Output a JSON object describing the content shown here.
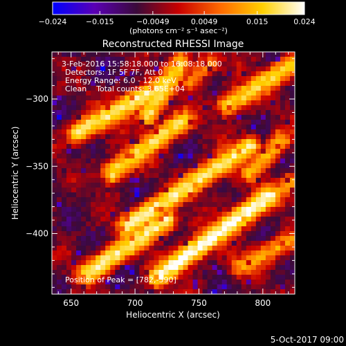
{
  "chart_data": {
    "type": "heatmap",
    "title": "Reconstructed RHESSI Image",
    "xlabel": "Heliocentric X (arcsec)",
    "ylabel": "Heliocentric Y (arcsec)",
    "xlim": [
      635,
      825
    ],
    "ylim": [
      -445,
      -265
    ],
    "x_ticks": [
      650,
      700,
      750,
      800
    ],
    "x_tick_labels": [
      "650",
      "700",
      "750",
      "800"
    ],
    "y_ticks": [
      -300,
      -350,
      -400
    ],
    "y_tick_labels": [
      "−300",
      "−350",
      "−400"
    ],
    "colorbar": {
      "min": -0.024,
      "max": 0.024,
      "ticks": [
        -0.024,
        -0.015,
        -0.0049,
        0.0049,
        0.015,
        0.024
      ],
      "tick_labels": [
        "−0.024",
        "−0.015",
        "−0.0049",
        "0.0049",
        "0.015",
        "0.024"
      ],
      "units": "(photons cm⁻² s⁻¹ asec⁻²)",
      "colormap": [
        "#0000ff",
        "#5a00b4",
        "#3a0a3a",
        "#c80000",
        "#ff6a00",
        "#ffd000",
        "#ffffff"
      ]
    },
    "annotations": [
      "3-Feb-2016 15:58:18.000 to 16:08:18.000",
      "Detectors: 1F 5F 7F, Att 0",
      "Energy Range: 6.0 - 12.0 keV",
      "Clean    Total counts: 3.65E+04"
    ],
    "peak_label": "Position of Peak = [782,-390]",
    "peak": [
      782,
      -390
    ],
    "bands": [
      {
        "x0": 655,
        "y0": -325,
        "x1": 725,
        "y1": -288,
        "amp": 0.02
      },
      {
        "x0": 710,
        "y0": -312,
        "x1": 735,
        "y1": -273,
        "amp": 0.018
      },
      {
        "x0": 682,
        "y0": -355,
        "x1": 738,
        "y1": -315,
        "amp": 0.018
      },
      {
        "x0": 693,
        "y0": -395,
        "x1": 790,
        "y1": -335,
        "amp": 0.02
      },
      {
        "x0": 662,
        "y0": -430,
        "x1": 725,
        "y1": -390,
        "amp": 0.02
      },
      {
        "x0": 718,
        "y0": -432,
        "x1": 805,
        "y1": -372,
        "amp": 0.023
      },
      {
        "x0": 772,
        "y0": -305,
        "x1": 822,
        "y1": -275,
        "amp": 0.017
      },
      {
        "x0": 790,
        "y0": -355,
        "x1": 815,
        "y1": -330,
        "amp": 0.013
      },
      {
        "x0": 782,
        "y0": -425,
        "x1": 822,
        "y1": -405,
        "amp": 0.012
      },
      {
        "x0": 798,
        "y0": -380,
        "x1": 822,
        "y1": -362,
        "amp": 0.011
      },
      {
        "x0": 742,
        "y0": -288,
        "x1": 760,
        "y1": -272,
        "amp": 0.01
      }
    ],
    "date_stamp": "5-Oct-2017 09:00"
  }
}
